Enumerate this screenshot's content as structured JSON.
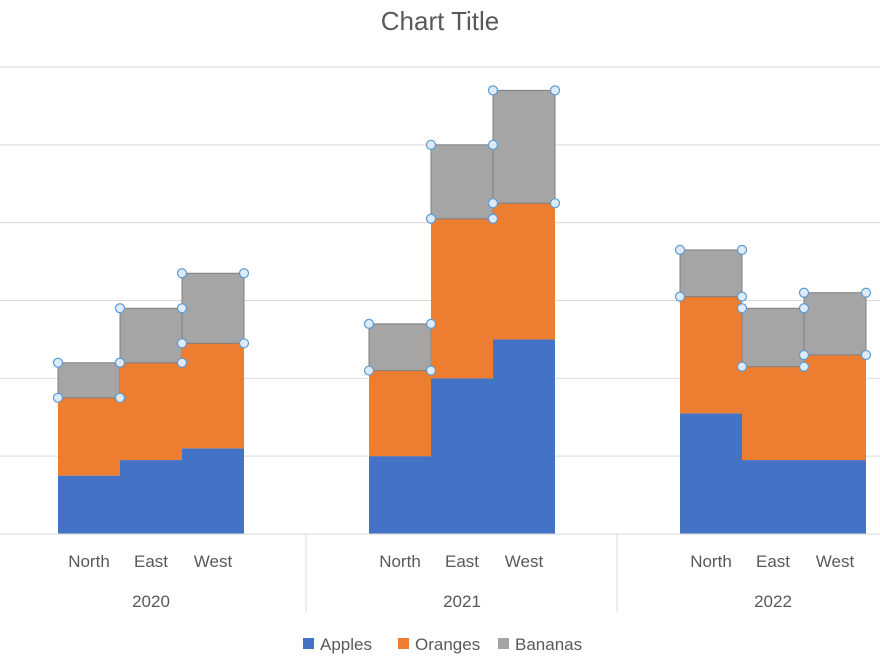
{
  "chart_data": {
    "type": "bar",
    "subtype": "stacked-step",
    "title": "Chart Title",
    "groups": [
      {
        "label": "2020",
        "categories": [
          "North",
          "East",
          "West"
        ]
      },
      {
        "label": "2021",
        "categories": [
          "North",
          "East",
          "West"
        ]
      },
      {
        "label": "2022",
        "categories": [
          "North",
          "East",
          "West"
        ]
      }
    ],
    "series": [
      {
        "name": "Apples",
        "color": "#4472C4",
        "values": [
          15,
          19,
          22,
          20,
          40,
          50,
          31,
          19,
          19
        ]
      },
      {
        "name": "Oranges",
        "color": "#ED7D31",
        "values": [
          20,
          25,
          27,
          22,
          41,
          35,
          30,
          24,
          27
        ]
      },
      {
        "name": "Bananas",
        "color": "#A5A5A5",
        "values": [
          9,
          14,
          18,
          12,
          19,
          29,
          12,
          15,
          16
        ]
      }
    ],
    "ylim": [
      0,
      120
    ],
    "gridlines": true,
    "legend_position": "bottom",
    "selection_handles": true
  }
}
